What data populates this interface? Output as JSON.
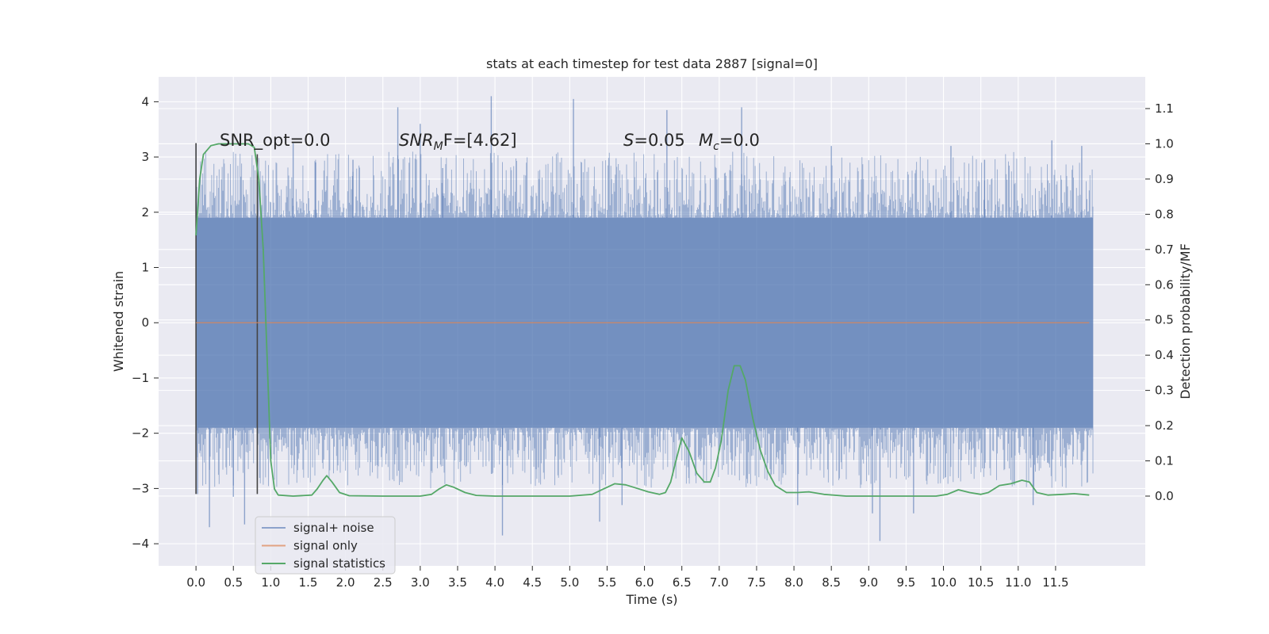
{
  "chart_data": {
    "type": "line",
    "title": "stats at each timestep for test data 2887 [signal=0]",
    "xlabel": "Time (s)",
    "ylabel_left": "Whitened strain",
    "ylabel_right": "Detection probability/MF",
    "xlim": [
      -0.5,
      12.7
    ],
    "ylim_left": [
      -4.4,
      4.45
    ],
    "ylim_right": [
      -0.198,
      1.19
    ],
    "x_ticks": [
      "0.0",
      "0.5",
      "1.0",
      "1.5",
      "2.0",
      "2.5",
      "3.0",
      "3.5",
      "4.0",
      "4.5",
      "5.0",
      "5.5",
      "6.0",
      "6.5",
      "7.0",
      "7.5",
      "8.0",
      "8.5",
      "9.0",
      "9.5",
      "10.0",
      "10.5",
      "11.0",
      "11.5"
    ],
    "y_left_ticks": [
      "4",
      "3",
      "2",
      "1",
      "0",
      "−1",
      "−2",
      "−3",
      "−4"
    ],
    "y_right_ticks": [
      "1.1",
      "1.0",
      "0.9",
      "0.8",
      "0.7",
      "0.6",
      "0.5",
      "0.4",
      "0.3",
      "0.2",
      "0.1",
      "0.0"
    ],
    "grid": true,
    "legend_position": "lower-left",
    "colors": {
      "noise": "#4c72b0",
      "signal": "#dd8452",
      "stats": "#55a868",
      "vline": "#444444",
      "background": "#eaeaf2",
      "grid": "#ffffff"
    },
    "annotations": {
      "snr_opt": "SNR_opt=0.0",
      "snr_mf_prefix": "SNR",
      "snr_mf_sub": "M",
      "snr_mf_suffix": "F=[4.62]",
      "s_var": "S",
      "s_value": "=0.05",
      "mc_var": "M",
      "mc_sub": "c",
      "mc_value": "=0.0"
    },
    "series": [
      {
        "name": "signal+ noise",
        "kind": "noise",
        "x_range": [
          0.0,
          12.0
        ],
        "amplitude_band": [
          -1.9,
          1.9
        ],
        "peaks": [
          [
            0.0,
            3.25
          ],
          [
            0.02,
            -3.1
          ],
          [
            0.18,
            -3.7
          ],
          [
            0.5,
            -3.15
          ],
          [
            0.65,
            -3.65
          ],
          [
            1.3,
            3.25
          ],
          [
            1.6,
            2.9
          ],
          [
            2.1,
            2.95
          ],
          [
            2.7,
            3.9
          ],
          [
            3.0,
            3.6
          ],
          [
            3.3,
            2.8
          ],
          [
            3.95,
            4.1
          ],
          [
            4.1,
            -3.85
          ],
          [
            5.05,
            4.05
          ],
          [
            5.4,
            -3.6
          ],
          [
            5.7,
            -3.3
          ],
          [
            6.3,
            3.85
          ],
          [
            7.3,
            3.9
          ],
          [
            8.05,
            -3.3
          ],
          [
            8.5,
            3.2
          ],
          [
            9.05,
            -3.45
          ],
          [
            9.15,
            -3.95
          ],
          [
            9.6,
            -3.45
          ],
          [
            10.1,
            3.2
          ],
          [
            10.55,
            2.95
          ],
          [
            11.2,
            -3.3
          ],
          [
            11.45,
            3.3
          ],
          [
            11.85,
            3.2
          ]
        ]
      },
      {
        "name": "signal only",
        "kind": "line",
        "axis": "left",
        "points": [
          [
            0.0,
            0.0
          ],
          [
            11.95,
            0.0
          ]
        ]
      },
      {
        "name": "signal statistics",
        "kind": "line",
        "axis": "right",
        "points": [
          [
            0.0,
            0.74
          ],
          [
            0.05,
            0.9
          ],
          [
            0.1,
            0.97
          ],
          [
            0.2,
            0.995
          ],
          [
            0.3,
            1.0
          ],
          [
            0.5,
            1.0
          ],
          [
            0.7,
            1.0
          ],
          [
            0.78,
            0.99
          ],
          [
            0.84,
            0.9
          ],
          [
            0.9,
            0.7
          ],
          [
            0.95,
            0.4
          ],
          [
            1.0,
            0.1
          ],
          [
            1.05,
            0.02
          ],
          [
            1.1,
            0.003
          ],
          [
            1.3,
            0.0
          ],
          [
            1.55,
            0.003
          ],
          [
            1.62,
            0.02
          ],
          [
            1.7,
            0.045
          ],
          [
            1.75,
            0.058
          ],
          [
            1.82,
            0.04
          ],
          [
            1.92,
            0.01
          ],
          [
            2.05,
            0.001
          ],
          [
            2.5,
            0.0
          ],
          [
            3.0,
            0.0
          ],
          [
            3.15,
            0.005
          ],
          [
            3.25,
            0.02
          ],
          [
            3.35,
            0.032
          ],
          [
            3.45,
            0.025
          ],
          [
            3.6,
            0.01
          ],
          [
            3.75,
            0.002
          ],
          [
            4.0,
            0.0
          ],
          [
            5.0,
            0.0
          ],
          [
            5.3,
            0.005
          ],
          [
            5.45,
            0.02
          ],
          [
            5.6,
            0.035
          ],
          [
            5.75,
            0.032
          ],
          [
            5.9,
            0.022
          ],
          [
            6.05,
            0.012
          ],
          [
            6.2,
            0.005
          ],
          [
            6.28,
            0.01
          ],
          [
            6.35,
            0.04
          ],
          [
            6.42,
            0.1
          ],
          [
            6.5,
            0.165
          ],
          [
            6.6,
            0.125
          ],
          [
            6.7,
            0.065
          ],
          [
            6.8,
            0.04
          ],
          [
            6.88,
            0.04
          ],
          [
            6.95,
            0.08
          ],
          [
            7.03,
            0.16
          ],
          [
            7.12,
            0.3
          ],
          [
            7.2,
            0.37
          ],
          [
            7.28,
            0.37
          ],
          [
            7.35,
            0.33
          ],
          [
            7.45,
            0.22
          ],
          [
            7.55,
            0.13
          ],
          [
            7.65,
            0.07
          ],
          [
            7.75,
            0.03
          ],
          [
            7.9,
            0.01
          ],
          [
            8.05,
            0.01
          ],
          [
            8.2,
            0.012
          ],
          [
            8.4,
            0.005
          ],
          [
            8.7,
            0.0
          ],
          [
            9.5,
            0.0
          ],
          [
            9.9,
            0.0
          ],
          [
            10.05,
            0.005
          ],
          [
            10.2,
            0.018
          ],
          [
            10.35,
            0.01
          ],
          [
            10.5,
            0.005
          ],
          [
            10.6,
            0.01
          ],
          [
            10.75,
            0.03
          ],
          [
            10.9,
            0.035
          ],
          [
            11.05,
            0.045
          ],
          [
            11.15,
            0.04
          ],
          [
            11.25,
            0.01
          ],
          [
            11.4,
            0.003
          ],
          [
            11.6,
            0.005
          ],
          [
            11.75,
            0.007
          ],
          [
            11.95,
            0.003
          ]
        ]
      }
    ],
    "vertical_markers": [
      {
        "x": 0.0,
        "y_range": [
          -3.1,
          3.25
        ]
      },
      {
        "x": 0.82,
        "y_range": [
          -3.1,
          3.05
        ]
      }
    ]
  }
}
